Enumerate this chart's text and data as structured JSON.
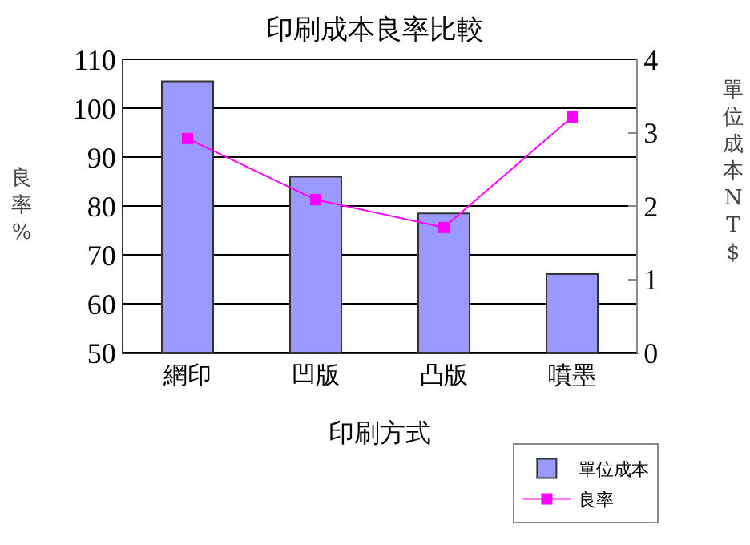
{
  "chart_data": {
    "type": "bar",
    "title": "印刷成本良率比較",
    "xlabel": "印刷方式",
    "ylabel": "良率%",
    "y2label": "單位成本NT$",
    "categories": [
      "網印",
      "凹版",
      "凸版",
      "噴墨"
    ],
    "series": [
      {
        "name": "單位成本",
        "axis": "y2",
        "color": "#9999ff",
        "values": [
          3.7,
          2.4,
          1.9,
          1.07
        ]
      },
      {
        "name": "良率",
        "type": "line",
        "axis": "y",
        "color": "#ff00ff",
        "values": [
          93.8,
          81.3,
          75.6,
          98.2
        ]
      }
    ],
    "ylim": [
      50,
      110
    ],
    "yticks": [
      50,
      60,
      70,
      80,
      90,
      100,
      110
    ],
    "y2lim": [
      0,
      4
    ],
    "y2ticks": [
      0,
      1,
      2,
      3,
      4
    ],
    "grid": "y",
    "legend": "bottom right",
    "marker": "square",
    "line_style": "solid"
  }
}
